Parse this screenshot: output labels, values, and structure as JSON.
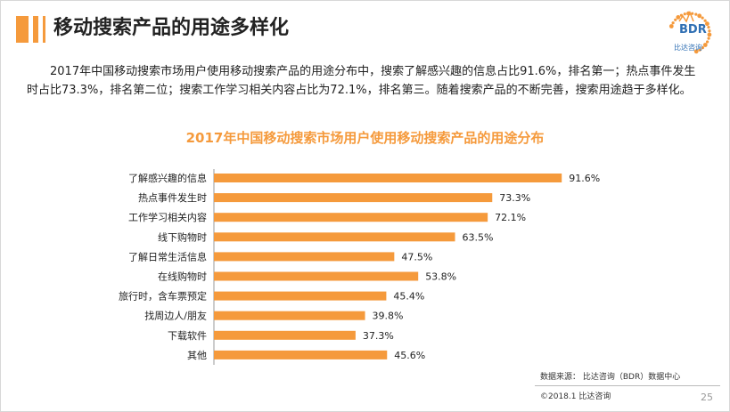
{
  "header": {
    "title": "移动搜索产品的用途多样化"
  },
  "logo": {
    "text": "BDR",
    "subtext": "比达咨询"
  },
  "intro": "2017年中国移动搜索市场用户使用移动搜索产品的用途分布中，搜索了解感兴趣的信息占比91.6%，排名第一；热点事件发生时占比73.3%，排名第二位；搜索工作学习相关内容占比为72.1%，排名第三。随着搜索产品的不断完善，搜索用途趋于多样化。",
  "colors": {
    "accent": "#f59a3c",
    "bar": "#f59a3c"
  },
  "chart_data": {
    "type": "bar",
    "orientation": "horizontal",
    "title": "2017年中国移动搜索市场用户使用移动搜索产品的用途分布",
    "categories": [
      "了解感兴趣的信息",
      "热点事件发生时",
      "工作学习相关内容",
      "线下购物时",
      "了解日常生活信息",
      "在线购物时",
      "旅行时，含车票预定",
      "找周边人/朋友",
      "下载软件",
      "其他"
    ],
    "values": [
      91.6,
      73.3,
      72.1,
      63.5,
      47.5,
      53.8,
      45.4,
      39.8,
      37.3,
      45.6
    ],
    "value_labels": [
      "91.6%",
      "73.3%",
      "72.1%",
      "63.5%",
      "47.5%",
      "53.8%",
      "45.4%",
      "39.8%",
      "37.3%",
      "45.6%"
    ],
    "xlim": [
      0,
      100
    ],
    "grid": false,
    "legend": "none"
  },
  "footer": {
    "source": "数据来源：  比达咨询（BDR）数据中心",
    "copyright": "©2018.1    比达咨询",
    "page": "25"
  }
}
